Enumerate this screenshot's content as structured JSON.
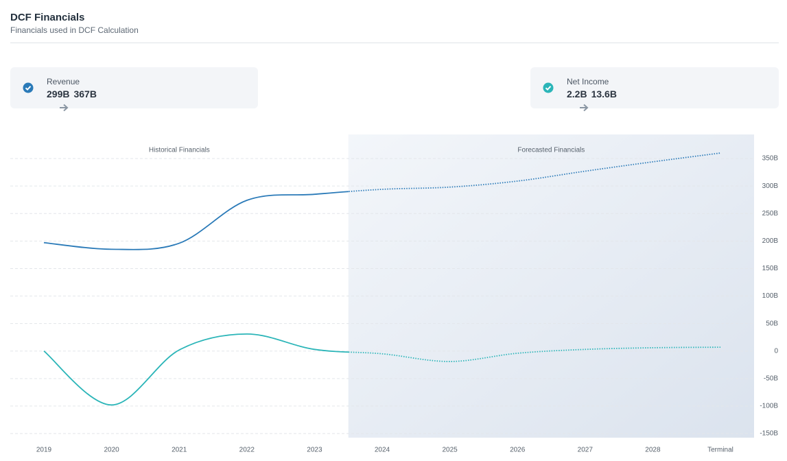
{
  "header": {
    "title": "DCF Financials",
    "subtitle": "Financials used in DCF Calculation"
  },
  "cards": [
    {
      "label": "Revenue",
      "from": "299B",
      "to": "367B"
    },
    {
      "label": "Net Income",
      "from": "2.2B",
      "to": "13.6B"
    }
  ],
  "chart_data": {
    "type": "line",
    "annotations": [
      "Historical Financials",
      "Forecasted Financials"
    ],
    "categories": [
      "2019",
      "2020",
      "2021",
      "2022",
      "2023",
      "2024",
      "2025",
      "2026",
      "2027",
      "2028",
      "Terminal"
    ],
    "series": [
      {
        "name": "Revenue",
        "color": "#2a7ab8",
        "values": [
          197,
          185,
          196,
          274,
          285,
          294,
          298,
          309,
          327,
          344,
          360
        ]
      },
      {
        "name": "Net Income",
        "color": "#2bb5b8",
        "values": [
          0,
          -98,
          2,
          31,
          3,
          -5,
          -19,
          -4,
          3,
          6,
          7
        ]
      }
    ],
    "ylim": [
      -150,
      390
    ],
    "yticks": [
      {
        "value": -150,
        "label": "-150B"
      },
      {
        "value": -100,
        "label": "-100B"
      },
      {
        "value": -50,
        "label": "-50B"
      },
      0,
      {
        "value": 50,
        "label": "50B"
      },
      {
        "value": 100,
        "label": "100B"
      },
      {
        "value": 150,
        "label": "150B"
      },
      {
        "value": 200,
        "label": "200B"
      },
      {
        "value": 250,
        "label": "250B"
      },
      {
        "value": 300,
        "label": "300B"
      },
      {
        "value": 350,
        "label": "350B"
      }
    ],
    "grid": true
  }
}
